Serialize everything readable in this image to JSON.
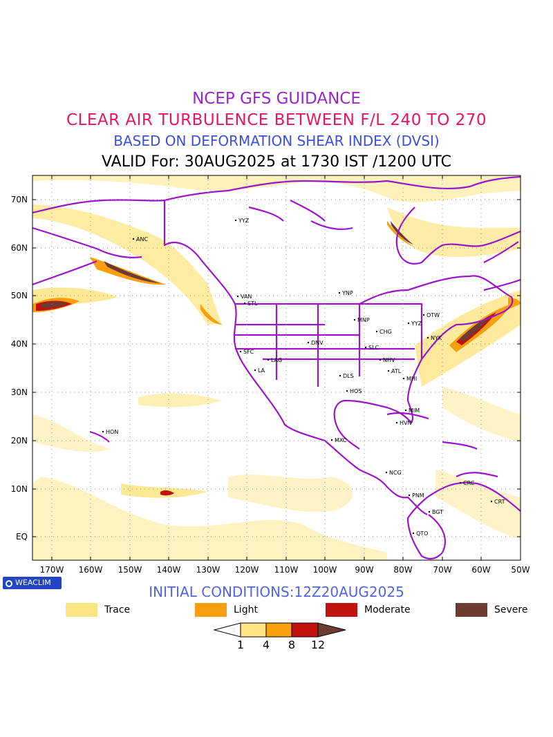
{
  "titles": {
    "line1": "NCEP GFS GUIDANCE",
    "line2": "CLEAR AIR TURBULENCE BETWEEN F/L 240 TO 270",
    "line3": "BASED ON DEFORMATION SHEAR INDEX (DVSI)",
    "line4": "VALID For: 30AUG2025 at 1730 IST /1200 UTC"
  },
  "initial_conditions": "INITIAL CONDITIONS:12Z20AUG2025",
  "badge": "WEACLIM",
  "lat_labels": [
    "70N",
    "60N",
    "50N",
    "40N",
    "30N",
    "20N",
    "10N",
    "EQ"
  ],
  "lon_labels": [
    "170W",
    "160W",
    "150W",
    "140W",
    "130W",
    "120W",
    "110W",
    "100W",
    "90W",
    "80W",
    "70W",
    "60W",
    "50W"
  ],
  "legend": [
    {
      "label": "Trace",
      "color": "#fde583"
    },
    {
      "label": "Light",
      "color": "#f99e0f"
    },
    {
      "label": "Moderate",
      "color": "#c0120f"
    },
    {
      "label": "Severe",
      "color": "#6b3c2f"
    }
  ],
  "colorbar_ticks": [
    "1",
    "4",
    "8",
    "12"
  ],
  "stations": [
    "ANC",
    "YYZ",
    "VAN",
    "STL",
    "YNP",
    "MNP",
    "OTW",
    "YYZ",
    "CHG",
    "NYK",
    "DNV",
    "SLC",
    "SFC",
    "LAG",
    "NHV",
    "LA",
    "DLS",
    "ATL",
    "MHI",
    "HOS",
    "MIM",
    "HVN",
    "HON",
    "MXC",
    "NCG",
    "PNM",
    "CRC",
    "CRT",
    "BGT",
    "QTO"
  ],
  "colors": {
    "coast": "#9b14c9",
    "trace": "#fde583",
    "light": "#f99e0f",
    "moderate": "#c0120f",
    "severe": "#6b3c2f"
  }
}
